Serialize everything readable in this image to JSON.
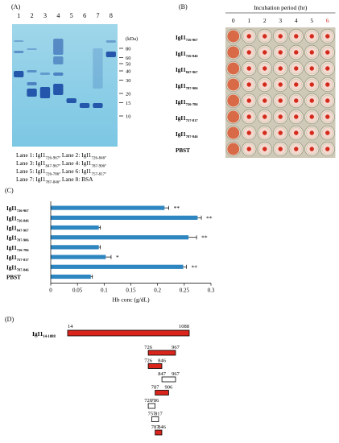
{
  "panelA": {
    "label": "(A)",
    "lane_numbers": [
      "1",
      "2",
      "3",
      "4",
      "5",
      "6",
      "7",
      "8"
    ],
    "kda_label": "(kDa)",
    "markers": [
      {
        "label": "80",
        "kda": 80
      },
      {
        "label": "60",
        "kda": 60
      },
      {
        "label": "50",
        "kda": 50
      },
      {
        "label": "40",
        "kda": 40
      },
      {
        "label": "30",
        "kda": 30
      },
      {
        "label": "20",
        "kda": 20
      },
      {
        "label": "15",
        "kda": 15
      },
      {
        "label": "10",
        "kda": 10
      }
    ],
    "legend": [
      [
        {
          "main": "Lane 1: IgI1",
          "sub": "726-967"
        },
        {
          "main": ", Lane 2: IgI1",
          "sub": "726-846"
        },
        {
          "main": ",",
          "sub": ""
        }
      ],
      [
        {
          "main": "Lane 3: IgI1",
          "sub": "847-967"
        },
        {
          "main": ", Lane 4: IgI1",
          "sub": "787-906"
        },
        {
          "main": ",",
          "sub": ""
        }
      ],
      [
        {
          "main": "Lane 5: IgI1",
          "sub": "726-786"
        },
        {
          "main": ", Lane 6: IgI1",
          "sub": "757-817"
        },
        {
          "main": ",",
          "sub": ""
        }
      ],
      [
        {
          "main": "Lane 7: IgI1",
          "sub": "787-846"
        },
        {
          "main": ", Lane 8: BSA",
          "sub": ""
        }
      ]
    ]
  },
  "panelB": {
    "label": "(B)",
    "title": "Incubation period (hr)",
    "hours": [
      "0",
      "1",
      "2",
      "3",
      "4",
      "5",
      "6"
    ],
    "hour_colors": [
      "#000000",
      "#000000",
      "#000000",
      "#000000",
      "#000000",
      "#000000",
      "#d62a1f"
    ],
    "rows": [
      {
        "main": "IgI1",
        "sub": "726-967"
      },
      {
        "main": "IgI1",
        "sub": "726-846"
      },
      {
        "main": "IgI1",
        "sub": "847-967"
      },
      {
        "main": "IgI1",
        "sub": "787-906"
      },
      {
        "main": "IgI1",
        "sub": "726-786"
      },
      {
        "main": "IgI1",
        "sub": "757-817"
      },
      {
        "main": "IgI1",
        "sub": "787-846"
      },
      {
        "main": "PBST",
        "sub": ""
      }
    ]
  },
  "panelC": {
    "label": "(C)",
    "chart_data": {
      "type": "bar",
      "orientation": "horizontal",
      "categories": [
        "IgI1726-967",
        "IgI1726-846",
        "IgI1847-967",
        "IgI1787-906",
        "IgI1726-786",
        "IgI1757-817",
        "IgI1787-846",
        "PBST"
      ],
      "category_labels": [
        {
          "main": "IgI1",
          "sub": "726-967"
        },
        {
          "main": "IgI1",
          "sub": "726-846"
        },
        {
          "main": "IgI1",
          "sub": "847-967"
        },
        {
          "main": "IgI1",
          "sub": "787-906"
        },
        {
          "main": "IgI1",
          "sub": "726-786"
        },
        {
          "main": "IgI1",
          "sub": "757-817"
        },
        {
          "main": "IgI1",
          "sub": "787-846"
        },
        {
          "main": "PBST",
          "sub": ""
        }
      ],
      "values": [
        0.213,
        0.275,
        0.09,
        0.258,
        0.09,
        0.103,
        0.248,
        0.075
      ],
      "errors": [
        0.008,
        0.007,
        0.003,
        0.015,
        0.003,
        0.01,
        0.006,
        0.003
      ],
      "significance": [
        "**",
        "**",
        "",
        "**",
        "",
        "*",
        "**",
        ""
      ],
      "xlabel": "Hb conc (g/dL)",
      "xlim": [
        0,
        0.3
      ],
      "xticks": [
        "0",
        "0.05",
        "0.1",
        "0.15",
        "0.2",
        "0.25",
        "0.3"
      ],
      "bar_color": "#2e86c1"
    }
  },
  "panelD": {
    "label": "(D)",
    "full_name": {
      "main": "IgI1",
      "sub": "14-1088"
    },
    "full_start": "14",
    "full_end": "1088",
    "fragments": [
      {
        "start": "726",
        "end": "967",
        "filled": true
      },
      {
        "start": "726",
        "end": "846",
        "filled": true
      },
      {
        "start": "847",
        "end": "967",
        "filled": false
      },
      {
        "start": "787",
        "end": "906",
        "filled": true
      },
      {
        "start": "726",
        "end": "786",
        "filled": false
      },
      {
        "start": "757",
        "end": "817",
        "filled": false
      },
      {
        "start": "787",
        "end": "846",
        "filled": true
      }
    ],
    "fill_color": "#d9251c"
  }
}
